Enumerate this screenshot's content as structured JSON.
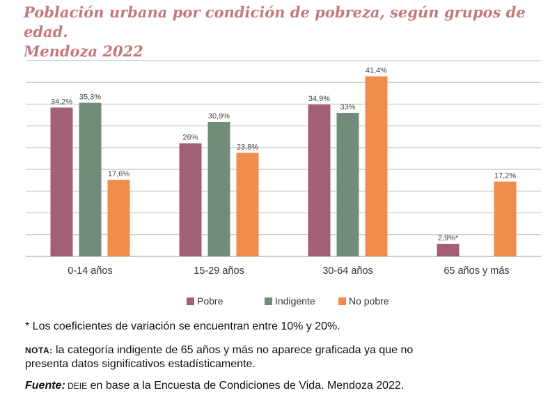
{
  "chart_data": {
    "type": "bar",
    "title": "Población urbana por condición de pobreza, según grupos de edad. Mendoza 2022",
    "title_lines": [
      "Población urbana por condición de pobreza, según grupos de edad.",
      "Mendoza 2022"
    ],
    "xlabel": "",
    "ylabel": "",
    "ylim": [
      0,
      45
    ],
    "grid_step": 5,
    "grid": true,
    "y_axis_labels_visible": false,
    "legend_position": "bottom",
    "categories": [
      "0-14 años",
      "15-29 años",
      "30-64 años",
      "65 años y más"
    ],
    "series": [
      {
        "name": "Pobre",
        "color": "#A35F73",
        "values": [
          34.2,
          26,
          34.9,
          2.9
        ],
        "labels": [
          "34,2%",
          "26%",
          "34,9%",
          "2,9%*"
        ]
      },
      {
        "name": "Indigente",
        "color": "#728C7B",
        "values": [
          35.3,
          30.9,
          33,
          null
        ],
        "labels": [
          "35,3%",
          "30,9%",
          "33%",
          null
        ]
      },
      {
        "name": "No pobre",
        "color": "#F08C4C",
        "values": [
          17.6,
          23.8,
          41.4,
          17.2
        ],
        "labels": [
          "17,6%",
          "23,8%",
          "41,4%",
          "17,2%"
        ]
      }
    ]
  },
  "notes": {
    "asterisk": "* Los coeficientes de variación se encuentran entre 10% y 20%.",
    "nota_label": "NOTA:",
    "nota_line1": " la categoría indigente de 65 años y más no aparece graficada ya que no",
    "nota_line2": "presenta datos significativos estadísticamente.",
    "fuente_label": "Fuente:",
    "fuente_org": " DEIE",
    "fuente_text": " en base a la Encuesta de Condiciones de Vida. Mendoza 2022."
  }
}
